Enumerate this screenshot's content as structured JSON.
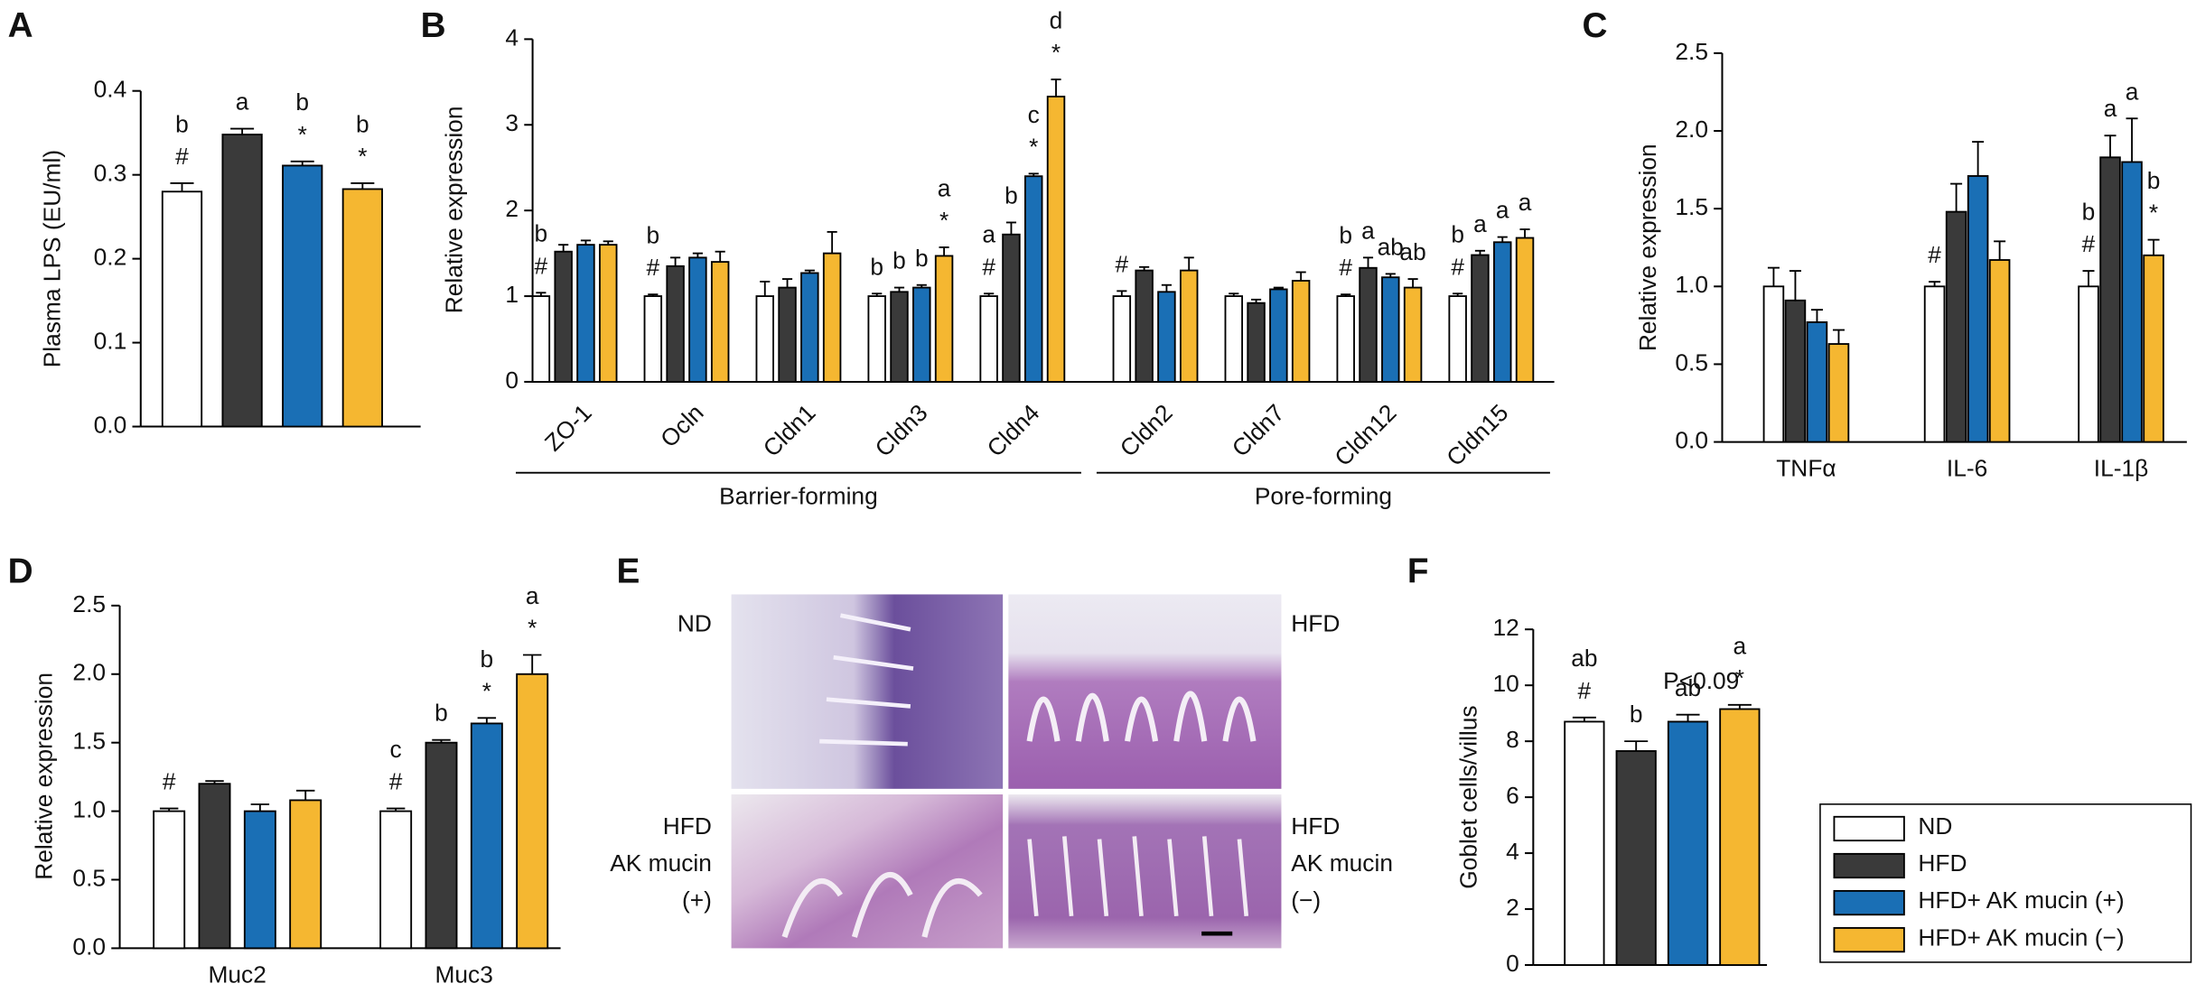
{
  "chart_data": [
    {
      "type": "bar",
      "panel": "A",
      "ylabel": "Plasma LPS (EU/ml)",
      "ylim": [
        0,
        0.4
      ],
      "yticks": [
        {
          "value": 0,
          "label": "0.0"
        },
        0.1,
        0.2,
        0.3,
        0.4
      ],
      "series": [
        {
          "color": "#ffffff",
          "values": [
            0.28
          ],
          "errors": [
            0.01
          ],
          "labels": [
            [
              "b",
              "#"
            ]
          ]
        },
        {
          "color": "#3a3a3a",
          "values": [
            0.348
          ],
          "errors": [
            0.007
          ],
          "labels": [
            [
              "a"
            ]
          ]
        },
        {
          "color": "#1a6fb5",
          "values": [
            0.311
          ],
          "errors": [
            0.005
          ],
          "labels": [
            [
              "b",
              "*"
            ]
          ]
        },
        {
          "color": "#f5b731",
          "values": [
            0.283
          ],
          "errors": [
            0.007
          ],
          "labels": [
            [
              "b",
              "*"
            ]
          ]
        }
      ]
    },
    {
      "type": "bar",
      "panel": "B",
      "ylabel": "Relative expression",
      "categories": [
        "ZO-1",
        "Ocln",
        "Cldn1",
        "Cldn3",
        "Cldn4",
        "Cldn2",
        "Cldn7",
        "Cldn12",
        "Cldn15"
      ],
      "groups": [
        {
          "label": "Barrier-forming",
          "count": 5
        },
        {
          "label": "Pore-forming",
          "count": 4
        }
      ],
      "ylim": [
        0,
        4
      ],
      "yticks": [
        0,
        1,
        2,
        3,
        4
      ],
      "series": [
        {
          "color": "#ffffff",
          "values": [
            1,
            1,
            1,
            1,
            1,
            1,
            1,
            1,
            1
          ],
          "errors": [
            0.04,
            0.02,
            0.17,
            0.03,
            0.03,
            0.06,
            0.03,
            0.02,
            0.03
          ],
          "labels": [
            [
              "b",
              "#"
            ],
            [
              "b",
              "#"
            ],
            null,
            [
              "b"
            ],
            [
              "a",
              "#"
            ],
            [
              "#"
            ],
            null,
            [
              "b",
              "#"
            ],
            [
              "b",
              "#"
            ]
          ]
        },
        {
          "color": "#3a3a3a",
          "values": [
            1.52,
            1.35,
            1.1,
            1.05,
            1.72,
            1.3,
            0.92,
            1.33,
            1.48
          ],
          "errors": [
            0.08,
            0.1,
            0.1,
            0.05,
            0.14,
            0.04,
            0.04,
            0.12,
            0.05
          ],
          "labels": [
            null,
            null,
            null,
            [
              "b"
            ],
            [
              "b"
            ],
            null,
            null,
            [
              "a"
            ],
            [
              "a"
            ]
          ]
        },
        {
          "color": "#1a6fb5",
          "values": [
            1.6,
            1.45,
            1.27,
            1.1,
            2.4,
            1.05,
            1.08,
            1.22,
            1.63
          ],
          "errors": [
            0.05,
            0.05,
            0.03,
            0.03,
            0.03,
            0.08,
            0.02,
            0.04,
            0.06
          ],
          "labels": [
            null,
            null,
            null,
            [
              "b"
            ],
            [
              "c",
              "*"
            ],
            null,
            null,
            [
              "ab"
            ],
            [
              "a"
            ]
          ]
        },
        {
          "color": "#f5b731",
          "values": [
            1.6,
            1.4,
            1.5,
            1.47,
            3.33,
            1.3,
            1.18,
            1.1,
            1.68
          ],
          "errors": [
            0.04,
            0.12,
            0.25,
            0.1,
            0.2,
            0.15,
            0.1,
            0.1,
            0.1
          ],
          "labels": [
            null,
            null,
            null,
            [
              "a",
              "*"
            ],
            [
              "d",
              "*"
            ],
            null,
            null,
            [
              "ab"
            ],
            [
              "a"
            ]
          ]
        }
      ]
    },
    {
      "type": "bar",
      "panel": "C",
      "ylabel": "Relative expression",
      "categories": [
        "TNFα",
        "IL-6",
        "IL-1β"
      ],
      "ylim": [
        0,
        2.5
      ],
      "yticks": [
        {
          "value": 0,
          "label": "0.0"
        },
        0.5,
        {
          "value": 1,
          "label": "1.0"
        },
        1.5,
        {
          "value": 2,
          "label": "2.0"
        },
        2.5
      ],
      "series": [
        {
          "color": "#ffffff",
          "values": [
            1,
            1,
            1
          ],
          "errors": [
            0.12,
            0.03,
            0.1
          ],
          "labels": [
            null,
            [
              "#"
            ],
            [
              "b",
              "#"
            ]
          ]
        },
        {
          "color": "#3a3a3a",
          "values": [
            0.91,
            1.48,
            1.83
          ],
          "errors": [
            0.19,
            0.18,
            0.14
          ],
          "labels": [
            null,
            null,
            [
              "a"
            ]
          ]
        },
        {
          "color": "#1a6fb5",
          "values": [
            0.77,
            1.71,
            1.8
          ],
          "errors": [
            0.08,
            0.22,
            0.28
          ],
          "labels": [
            null,
            null,
            [
              "a"
            ]
          ]
        },
        {
          "color": "#f5b731",
          "values": [
            0.63,
            1.17,
            1.2
          ],
          "errors": [
            0.09,
            0.12,
            0.1
          ],
          "labels": [
            null,
            null,
            [
              "b",
              "*"
            ]
          ]
        }
      ]
    },
    {
      "type": "bar",
      "panel": "D",
      "ylabel": "Relative expression",
      "categories": [
        "Muc2",
        "Muc3"
      ],
      "ylim": [
        0,
        2.5
      ],
      "yticks": [
        {
          "value": 0,
          "label": "0.0"
        },
        0.5,
        {
          "value": 1,
          "label": "1.0"
        },
        1.5,
        {
          "value": 2,
          "label": "2.0"
        },
        2.5
      ],
      "series": [
        {
          "color": "#ffffff",
          "values": [
            1,
            1
          ],
          "errors": [
            0.02,
            0.02
          ],
          "labels": [
            [
              "#"
            ],
            [
              "c",
              "#"
            ]
          ]
        },
        {
          "color": "#3a3a3a",
          "values": [
            1.2,
            1.5
          ],
          "errors": [
            0.02,
            0.02
          ],
          "labels": [
            null,
            [
              "b"
            ]
          ]
        },
        {
          "color": "#1a6fb5",
          "values": [
            1.0,
            1.64
          ],
          "errors": [
            0.05,
            0.04
          ],
          "labels": [
            null,
            [
              "b",
              "*"
            ]
          ]
        },
        {
          "color": "#f5b731",
          "values": [
            1.08,
            2.0
          ],
          "errors": [
            0.07,
            0.14
          ],
          "labels": [
            null,
            [
              "a",
              "*"
            ]
          ]
        }
      ]
    },
    {
      "type": "image",
      "panel": "E",
      "images": [
        {
          "label": [
            "ND"
          ]
        },
        {
          "label": [
            "HFD"
          ]
        },
        {
          "label": [
            "HFD",
            "AK mucin",
            "(+)"
          ]
        },
        {
          "label": [
            "HFD",
            "AK mucin",
            "(−)"
          ]
        }
      ]
    },
    {
      "type": "bar",
      "panel": "F",
      "ylabel": "Goblet cells/villus",
      "annotation": "P<0.09",
      "ylim": [
        0,
        12
      ],
      "yticks": [
        0,
        2,
        4,
        6,
        8,
        10,
        12
      ],
      "series": [
        {
          "name": "ND",
          "color": "#ffffff",
          "values": [
            8.7
          ],
          "errors": [
            0.15
          ],
          "labels": [
            [
              "ab",
              "#"
            ]
          ]
        },
        {
          "name": "HFD",
          "color": "#3a3a3a",
          "values": [
            7.65
          ],
          "errors": [
            0.35
          ],
          "labels": [
            [
              "b"
            ]
          ]
        },
        {
          "name": "HFD+ AK mucin (+)",
          "color": "#1a6fb5",
          "values": [
            8.7
          ],
          "errors": [
            0.25
          ],
          "labels": [
            [
              "ab"
            ]
          ]
        },
        {
          "name": "HFD+ AK mucin (−)",
          "color": "#f5b731",
          "values": [
            9.15
          ],
          "errors": [
            0.15
          ],
          "labels": [
            [
              "a",
              "*"
            ]
          ]
        }
      ]
    }
  ]
}
